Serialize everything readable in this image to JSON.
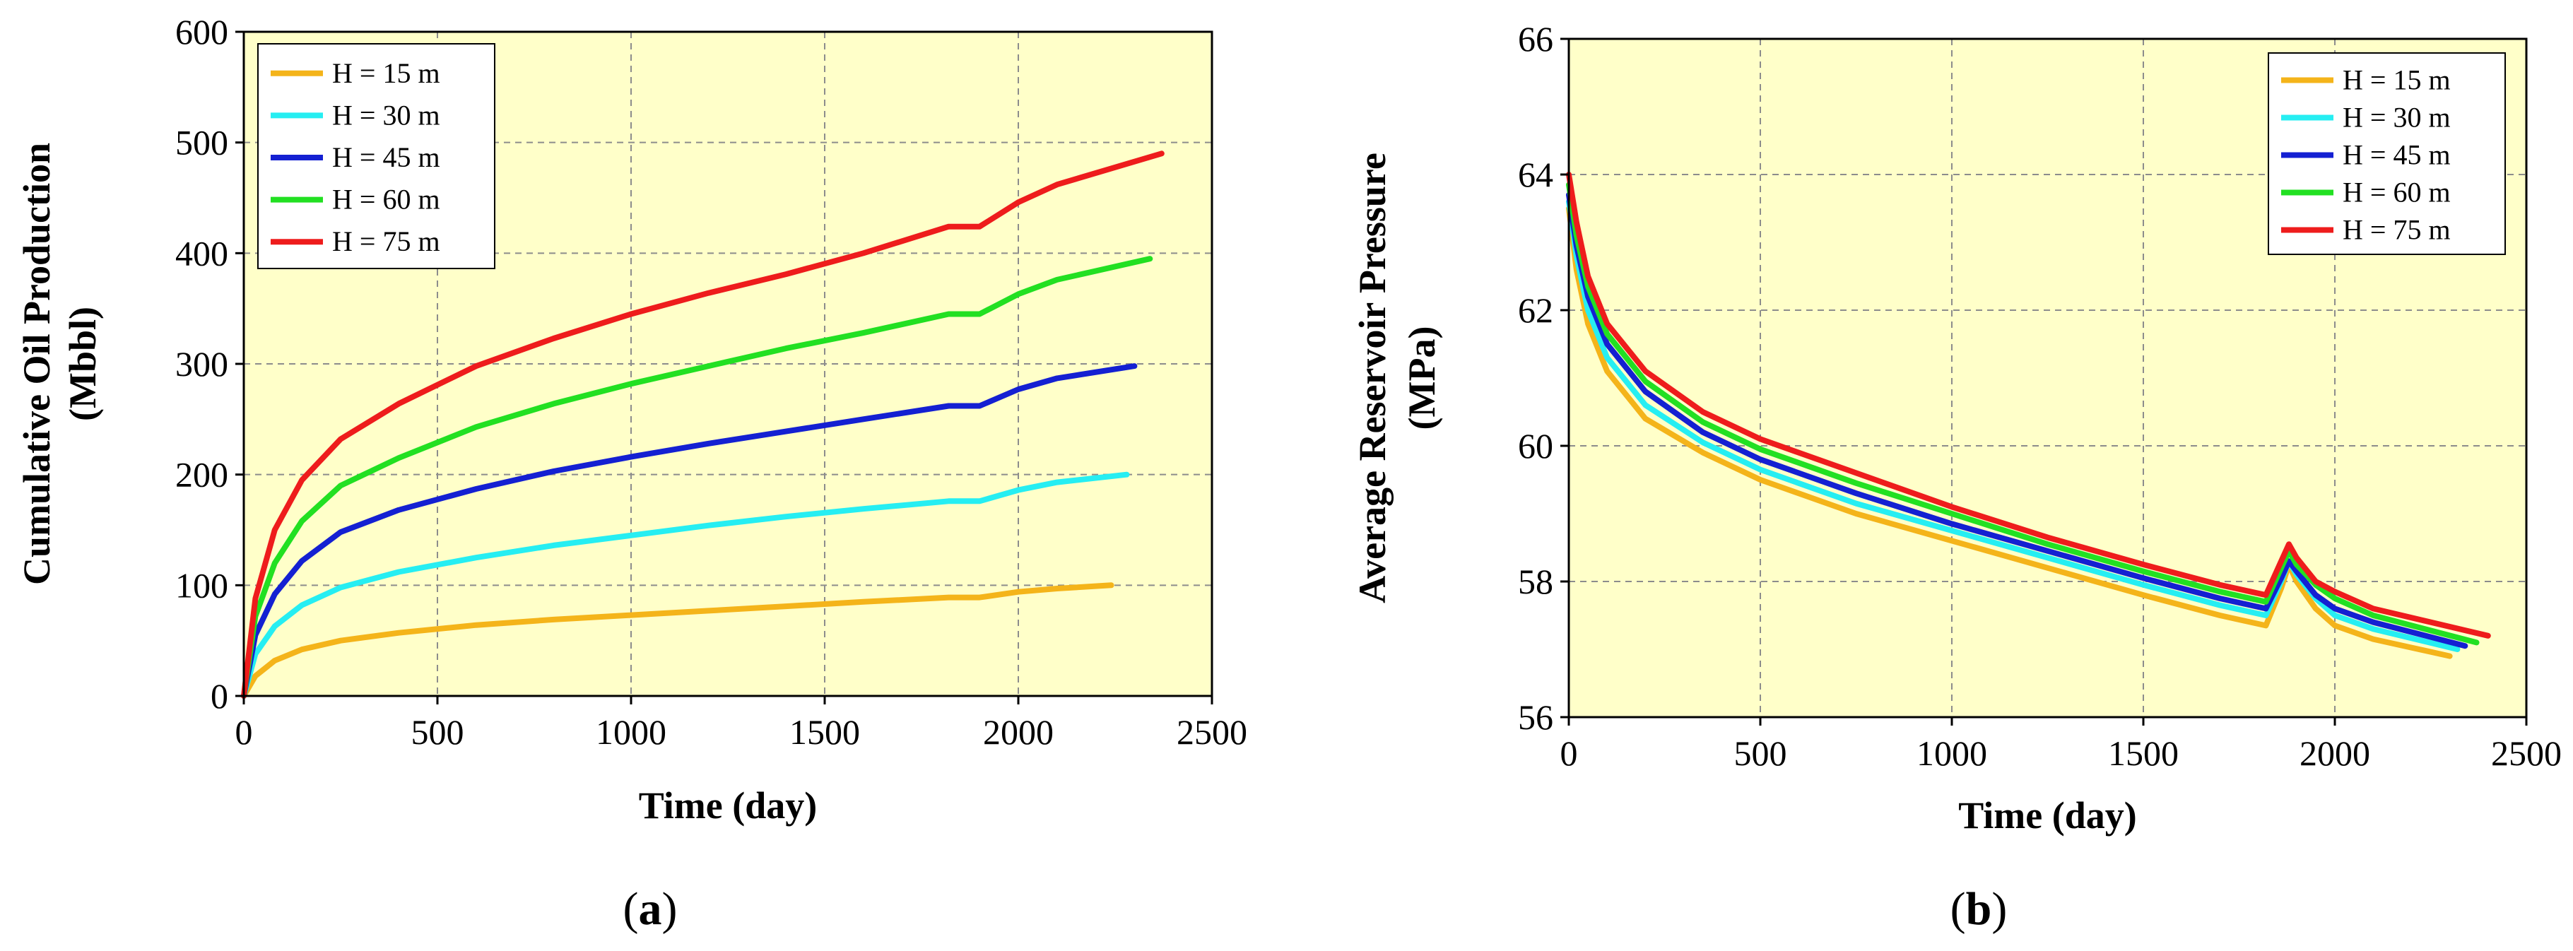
{
  "colors": {
    "plot_background": "#ffffc9",
    "grid": "#8c8c8c",
    "frame": "#000000",
    "series": [
      "#f4b41a",
      "#26eef2",
      "#1420d2",
      "#22e022",
      "#ee1c1c"
    ]
  },
  "chart_data": [
    {
      "id": "a",
      "type": "line",
      "caption_open": "(",
      "caption_letter": "a",
      "caption_close": ")",
      "title": "",
      "xlabel": "Time (day)",
      "ylabel_line1": "Cumulative Oil Production",
      "ylabel_line2": "(Mbbl)",
      "xlim": [
        0,
        2500
      ],
      "ylim": [
        0,
        600
      ],
      "xticks": [
        0,
        500,
        1000,
        1500,
        2000,
        2500
      ],
      "yticks": [
        0,
        100,
        200,
        300,
        400,
        500,
        600
      ],
      "grid": true,
      "legend_position": "top-left",
      "series": [
        {
          "name": "H = 15 m",
          "x": [
            0,
            30,
            80,
            150,
            250,
            400,
            600,
            800,
            1000,
            1200,
            1400,
            1600,
            1820,
            1900,
            2000,
            2100,
            2240
          ],
          "y": [
            0,
            18,
            32,
            42,
            50,
            57,
            64,
            69,
            73,
            77,
            81,
            85,
            89,
            89,
            94,
            97,
            100
          ]
        },
        {
          "name": "H = 30 m",
          "x": [
            0,
            30,
            80,
            150,
            250,
            400,
            600,
            800,
            1000,
            1200,
            1400,
            1600,
            1820,
            1900,
            2000,
            2100,
            2280
          ],
          "y": [
            0,
            38,
            63,
            82,
            98,
            112,
            125,
            136,
            145,
            154,
            162,
            169,
            176,
            176,
            186,
            193,
            200
          ]
        },
        {
          "name": "H = 45 m",
          "x": [
            0,
            30,
            80,
            150,
            250,
            400,
            600,
            800,
            1000,
            1200,
            1400,
            1600,
            1820,
            1900,
            2000,
            2100,
            2300
          ],
          "y": [
            0,
            55,
            92,
            122,
            148,
            168,
            187,
            203,
            216,
            228,
            239,
            250,
            262,
            262,
            277,
            287,
            298
          ]
        },
        {
          "name": "H = 60 m",
          "x": [
            0,
            30,
            80,
            150,
            250,
            400,
            600,
            800,
            1000,
            1200,
            1400,
            1600,
            1820,
            1900,
            2000,
            2100,
            2340
          ],
          "y": [
            0,
            72,
            120,
            158,
            190,
            215,
            243,
            264,
            282,
            298,
            314,
            328,
            345,
            345,
            363,
            376,
            395
          ]
        },
        {
          "name": "H = 75 m",
          "x": [
            0,
            30,
            80,
            150,
            250,
            400,
            600,
            800,
            1000,
            1200,
            1400,
            1600,
            1820,
            1900,
            2000,
            2100,
            2370
          ],
          "y": [
            0,
            88,
            150,
            195,
            232,
            264,
            298,
            323,
            345,
            364,
            381,
            400,
            424,
            424,
            446,
            462,
            490
          ]
        }
      ]
    },
    {
      "id": "b",
      "type": "line",
      "caption_open": "(",
      "caption_letter": "b",
      "caption_close": ")",
      "title": "",
      "xlabel": "Time (day)",
      "ylabel_line1": "Average Reservoir Pressure",
      "ylabel_line2": "(MPa)",
      "xlim": [
        0,
        2500
      ],
      "ylim": [
        56,
        66
      ],
      "xticks": [
        0,
        500,
        1000,
        1500,
        2000,
        2500
      ],
      "yticks": [
        56,
        58,
        60,
        62,
        64,
        66
      ],
      "grid": true,
      "legend_position": "top-right",
      "series": [
        {
          "name": "H = 15 m",
          "x": [
            0,
            20,
            50,
            100,
            200,
            350,
            500,
            750,
            1000,
            1250,
            1500,
            1700,
            1820,
            1860,
            1880,
            1900,
            1950,
            2000,
            2100,
            2300
          ],
          "y": [
            63.5,
            62.6,
            61.8,
            61.1,
            60.4,
            59.9,
            59.5,
            59.0,
            58.6,
            58.2,
            57.8,
            57.5,
            57.35,
            57.9,
            58.25,
            58.0,
            57.6,
            57.35,
            57.15,
            56.9
          ]
        },
        {
          "name": "H = 30 m",
          "x": [
            0,
            20,
            50,
            100,
            200,
            350,
            500,
            750,
            1000,
            1250,
            1500,
            1700,
            1820,
            1860,
            1880,
            1900,
            1950,
            2000,
            2100,
            2320
          ],
          "y": [
            63.6,
            62.8,
            62.0,
            61.3,
            60.6,
            60.05,
            59.65,
            59.15,
            58.75,
            58.35,
            57.95,
            57.65,
            57.5,
            58.0,
            58.3,
            58.1,
            57.75,
            57.5,
            57.3,
            57.0
          ]
        },
        {
          "name": "H = 45 m",
          "x": [
            0,
            20,
            50,
            100,
            200,
            350,
            500,
            750,
            1000,
            1250,
            1500,
            1700,
            1820,
            1860,
            1880,
            1900,
            1950,
            2000,
            2100,
            2340
          ],
          "y": [
            63.7,
            62.95,
            62.2,
            61.5,
            60.8,
            60.2,
            59.8,
            59.3,
            58.85,
            58.45,
            58.05,
            57.75,
            57.6,
            58.05,
            58.3,
            58.15,
            57.8,
            57.6,
            57.4,
            57.05
          ]
        },
        {
          "name": "H = 60 m",
          "x": [
            0,
            20,
            50,
            100,
            200,
            350,
            500,
            750,
            1000,
            1250,
            1500,
            1700,
            1820,
            1860,
            1880,
            1900,
            1950,
            2000,
            2100,
            2370
          ],
          "y": [
            63.85,
            63.1,
            62.35,
            61.65,
            60.95,
            60.35,
            59.95,
            59.45,
            59.0,
            58.55,
            58.15,
            57.85,
            57.7,
            58.2,
            58.45,
            58.25,
            57.95,
            57.75,
            57.5,
            57.1
          ]
        },
        {
          "name": "H = 75 m",
          "x": [
            0,
            20,
            50,
            100,
            200,
            350,
            500,
            750,
            1000,
            1250,
            1500,
            1700,
            1820,
            1860,
            1880,
            1900,
            1950,
            2000,
            2100,
            2400
          ],
          "y": [
            64.0,
            63.3,
            62.5,
            61.8,
            61.1,
            60.5,
            60.1,
            59.6,
            59.1,
            58.65,
            58.25,
            57.95,
            57.8,
            58.3,
            58.55,
            58.35,
            58.0,
            57.85,
            57.6,
            57.2
          ]
        }
      ]
    }
  ]
}
